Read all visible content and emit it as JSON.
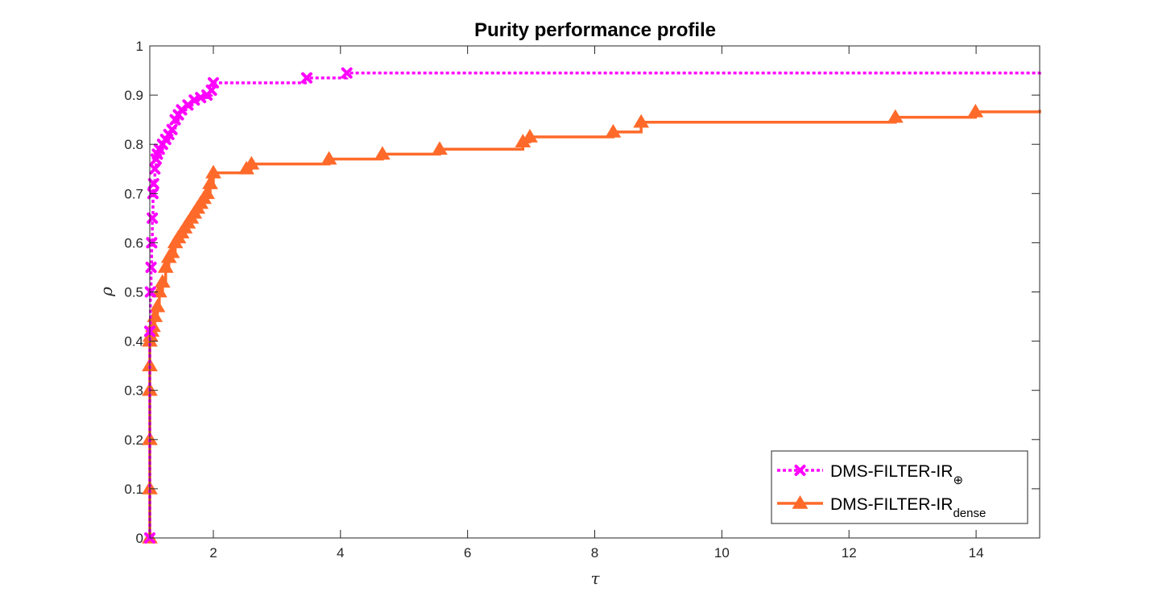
{
  "chart_data": {
    "type": "line",
    "title": "Purity performance profile",
    "xlabel": "τ",
    "ylabel": "ρ",
    "xlim": [
      1,
      15
    ],
    "ylim": [
      0,
      1
    ],
    "xticks": [
      2,
      4,
      6,
      8,
      10,
      12,
      14
    ],
    "xtick_labels": [
      "2",
      "4",
      "6",
      "8",
      "10",
      "12",
      "14"
    ],
    "yticks": [
      0,
      0.1,
      0.2,
      0.3,
      0.4,
      0.5,
      0.6,
      0.7,
      0.8,
      0.9,
      1
    ],
    "ytick_labels": [
      "0",
      "0.1",
      "0.2",
      "0.3",
      "0.4",
      "0.5",
      "0.6",
      "0.7",
      "0.8",
      "0.9",
      "1"
    ],
    "grid": false,
    "legend_position": "bottom-right",
    "series": [
      {
        "name": "DMS-FILTER-IR",
        "name_subscript": "⊕",
        "color": "#FF00FF",
        "line_style": "dotted",
        "marker": "x",
        "x": [
          1.0,
          1.0,
          1.01,
          1.02,
          1.03,
          1.04,
          1.05,
          1.06,
          1.08,
          1.1,
          1.12,
          1.15,
          1.2,
          1.25,
          1.3,
          1.35,
          1.4,
          1.45,
          1.5,
          1.6,
          1.7,
          1.8,
          1.9,
          1.97,
          2.0,
          3.47,
          4.1,
          15.0
        ],
        "y": [
          0.0,
          0.42,
          0.5,
          0.55,
          0.6,
          0.65,
          0.7,
          0.72,
          0.75,
          0.77,
          0.78,
          0.79,
          0.8,
          0.81,
          0.82,
          0.83,
          0.85,
          0.86,
          0.87,
          0.88,
          0.89,
          0.895,
          0.9,
          0.91,
          0.925,
          0.935,
          0.945,
          0.947
        ]
      },
      {
        "name": "DMS-FILTER-IR",
        "name_subscript": "dense",
        "color": "#FF6A2A",
        "line_style": "solid",
        "marker": "triangle",
        "x": [
          1.0,
          1.0,
          1.0,
          1.0,
          1.0,
          1.0,
          1.01,
          1.03,
          1.05,
          1.08,
          1.12,
          1.15,
          1.2,
          1.25,
          1.3,
          1.35,
          1.4,
          1.45,
          1.5,
          1.55,
          1.6,
          1.65,
          1.7,
          1.75,
          1.8,
          1.85,
          1.9,
          1.95,
          2.0,
          2.52,
          2.6,
          3.82,
          4.66,
          5.56,
          6.87,
          6.98,
          8.29,
          8.73,
          12.73,
          13.99,
          15.0
        ],
        "y": [
          0.0,
          0.1,
          0.2,
          0.3,
          0.35,
          0.4,
          0.41,
          0.42,
          0.43,
          0.45,
          0.47,
          0.5,
          0.52,
          0.55,
          0.57,
          0.58,
          0.6,
          0.61,
          0.62,
          0.63,
          0.64,
          0.65,
          0.66,
          0.67,
          0.68,
          0.69,
          0.7,
          0.72,
          0.742,
          0.75,
          0.76,
          0.77,
          0.78,
          0.79,
          0.805,
          0.815,
          0.825,
          0.845,
          0.855,
          0.866,
          0.87
        ]
      }
    ]
  }
}
